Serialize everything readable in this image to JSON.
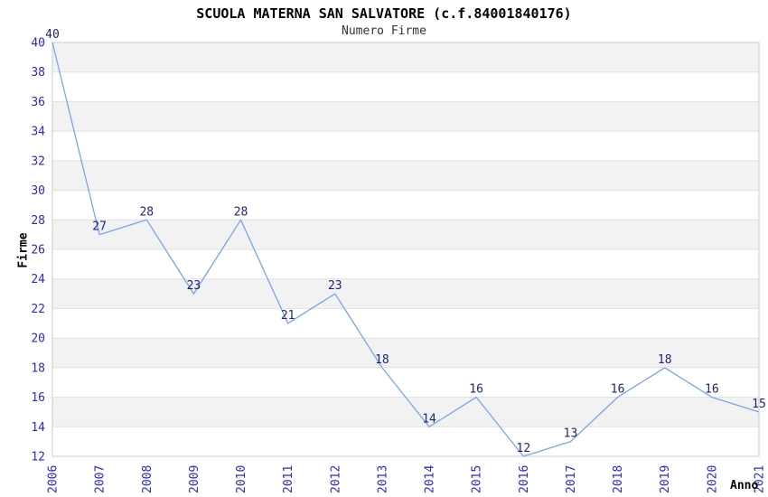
{
  "chart_data": {
    "type": "line",
    "title": "SCUOLA MATERNA SAN SALVATORE (c.f.84001840176)",
    "subtitle": "Numero Firme",
    "xlabel": "Anno",
    "ylabel": "Firme",
    "categories": [
      "2006",
      "2007",
      "2008",
      "2009",
      "2010",
      "2011",
      "2012",
      "2013",
      "2014",
      "2015",
      "2016",
      "2017",
      "2018",
      "2019",
      "2020",
      "2021"
    ],
    "values": [
      40,
      27,
      28,
      23,
      28,
      21,
      23,
      18,
      14,
      16,
      12,
      13,
      16,
      18,
      16,
      15
    ],
    "ylim": [
      12,
      40
    ],
    "ytick_step": 2,
    "grid": true,
    "band_fill": "alternating-horizontal",
    "legend_position": "none",
    "data_labels": true,
    "colors": {
      "line": "#79a5e8",
      "tick_label": "#2929cc",
      "data_label": "#232376",
      "band": "#f2f2f2",
      "gridline": "#e0e0e0",
      "border": "#cccccc",
      "title": "#000000",
      "subtitle": "#333333",
      "axis_title": "#000000",
      "background": "#ffffff"
    }
  }
}
